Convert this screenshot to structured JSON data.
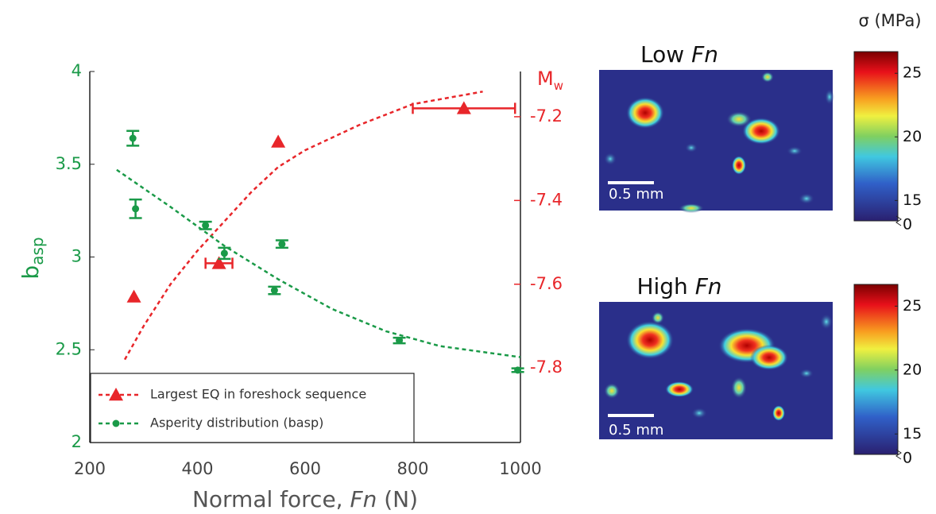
{
  "chart_data": {
    "type": "scatter",
    "x_label": [
      "Normal force, ",
      "Fn",
      " (N)"
    ],
    "y_label": {
      "text": "b",
      "subscript": "asp"
    },
    "y2_label": {
      "text": "M",
      "subscript": "w"
    },
    "xlim": [
      200,
      1000
    ],
    "xticks": [
      200,
      400,
      600,
      800,
      1000
    ],
    "ylim": [
      2,
      4
    ],
    "yticks": [
      2,
      2.5,
      3,
      3.5,
      4
    ],
    "y2lim": [
      -7.978,
      -7.092
    ],
    "y2ticks": [
      -7.2,
      -7.4,
      -7.6,
      -7.8
    ],
    "legend": "lower left",
    "series": [
      {
        "name": "Largest EQ in foreshock sequence",
        "color": "#e8262a",
        "axis": "y2",
        "marker": "triangle",
        "x": [
          282,
          440,
          550,
          895
        ],
        "values": [
          -7.63,
          -7.55,
          -7.26,
          -7.18
        ],
        "xerr": [
          null,
          25,
          null,
          95
        ]
      },
      {
        "name": "Asperity distribution (basp)",
        "color": "#1a9a48",
        "axis": "y",
        "marker": "circle",
        "x": [
          280,
          285,
          415,
          450,
          557,
          543,
          775,
          995
        ],
        "values": [
          3.64,
          3.26,
          3.17,
          3.02,
          3.07,
          2.82,
          2.55,
          2.39
        ],
        "yerr": [
          0.04,
          0.05,
          0.02,
          0.03,
          0.02,
          0.02,
          0.015,
          0.01
        ]
      }
    ],
    "fits": [
      {
        "color": "#e8262a",
        "axis": "y2",
        "x": [
          265,
          300,
          350,
          400,
          450,
          500,
          550,
          600,
          700,
          800,
          930
        ],
        "values": [
          -7.78,
          -7.7,
          -7.6,
          -7.52,
          -7.45,
          -7.38,
          -7.32,
          -7.28,
          -7.22,
          -7.17,
          -7.14
        ]
      },
      {
        "color": "#1a9a48",
        "axis": "y",
        "x": [
          250,
          350,
          450,
          550,
          650,
          750,
          850,
          1000
        ],
        "values": [
          3.47,
          3.27,
          3.06,
          2.88,
          2.72,
          2.6,
          2.52,
          2.46
        ]
      }
    ]
  },
  "colorbar_label": "σ (MPa)",
  "clim": [
    13.4,
    26.7
  ],
  "images": [
    {
      "title": [
        "Low ",
        "Fn"
      ],
      "scale_bar": "0.5 mm",
      "colorbar_ticks": [
        25,
        20,
        15,
        0
      ]
    },
    {
      "title": [
        "High ",
        "Fn"
      ],
      "scale_bar": "0.5 mm",
      "colorbar_ticks": [
        25,
        20,
        15,
        0
      ]
    }
  ]
}
